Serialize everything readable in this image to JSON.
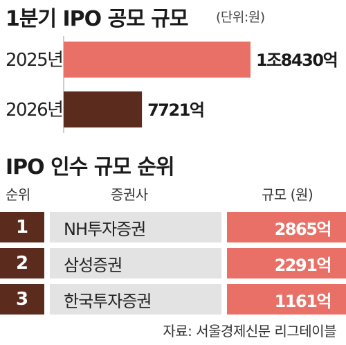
{
  "title": "1분기 IPO 공모 규모",
  "unit": "(단위:원)",
  "chart_data": {
    "type": "bar",
    "orientation": "horizontal",
    "title": "1분기 IPO 공모 규모",
    "unit": "(단위:원)",
    "categories": [
      "2025년",
      "2026년"
    ],
    "values": [
      18430,
      7721
    ],
    "value_unit": "억",
    "value_labels": [
      "1조8430억",
      "7721억"
    ],
    "colors": [
      "#e87067",
      "#5b2c1e"
    ]
  },
  "ranking": {
    "title": "IPO 인수 규모 순위",
    "headers": {
      "rank": "순위",
      "firm": "증권사",
      "size": "규모 (원)"
    },
    "rows": [
      {
        "rank": "1",
        "firm": "NH투자증권",
        "size": "2865억"
      },
      {
        "rank": "2",
        "firm": "삼성증권",
        "size": "2291억"
      },
      {
        "rank": "3",
        "firm": "한국투자증권",
        "size": "1161억"
      }
    ]
  },
  "source": "자료: 서울경제신문 리그테이블",
  "colors": {
    "accent": "#e87067",
    "dark": "#5b2c1e",
    "cell_gray": "#e3e3e3"
  }
}
